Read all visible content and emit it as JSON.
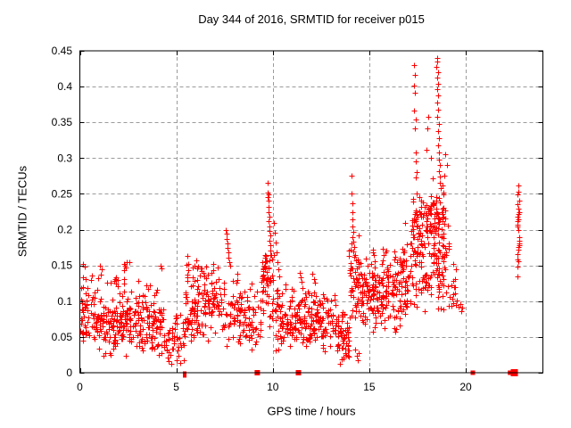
{
  "chart_data": {
    "type": "scatter",
    "title": "Day 344 of 2016, SRMTID for receiver p015",
    "xlabel": "GPS time / hours",
    "ylabel": "SRMTID / TECUs",
    "xlim": [
      0,
      24
    ],
    "ylim": [
      0,
      0.45
    ],
    "grid": true,
    "legend": "none",
    "marker": "plus",
    "point_color": "#ff0000",
    "grid_color": "#9b9b9b",
    "axis_color": "#000000",
    "x_ticks": {
      "values": [
        0,
        5,
        10,
        15,
        20
      ],
      "labels": [
        "0",
        "5",
        "10",
        "15",
        "20"
      ]
    },
    "y_ticks": {
      "values": [
        0,
        0.05,
        0.1,
        0.15,
        0.2,
        0.25,
        0.3,
        0.35,
        0.4,
        0.45
      ],
      "labels": [
        "0",
        "0.05",
        "0.1",
        "0.15",
        "0.2",
        "0.25",
        "0.3",
        "0.35",
        "0.4",
        "0.45"
      ]
    },
    "seed": 1337,
    "noise_bands": [
      {
        "x0": 0.0,
        "x1": 0.55,
        "n": 40,
        "mean": 0.082,
        "sd": 0.027,
        "min": 0.035,
        "max": 0.14
      },
      {
        "x0": 0.55,
        "x1": 4.35,
        "n": 270,
        "mean": 0.068,
        "sd": 0.023,
        "min": 0.022,
        "max": 0.125
      },
      {
        "x0": 0.55,
        "x1": 4.35,
        "n": 22,
        "mean": 0.115,
        "sd": 0.012,
        "min": 0.1,
        "max": 0.14
      },
      {
        "x0": 4.35,
        "x1": 5.45,
        "n": 48,
        "mean": 0.045,
        "sd": 0.018,
        "min": 0.008,
        "max": 0.085
      },
      {
        "x0": 5.45,
        "x1": 7.6,
        "n": 150,
        "mean": 0.095,
        "sd": 0.026,
        "min": 0.042,
        "max": 0.158
      },
      {
        "x0": 7.6,
        "x1": 9.4,
        "n": 100,
        "mean": 0.078,
        "sd": 0.022,
        "min": 0.032,
        "max": 0.132
      },
      {
        "x0": 9.35,
        "x1": 10.1,
        "n": 60,
        "mean": 0.118,
        "sd": 0.028,
        "min": 0.06,
        "max": 0.168
      },
      {
        "x0": 10.1,
        "x1": 13.35,
        "n": 240,
        "mean": 0.072,
        "sd": 0.021,
        "min": 0.028,
        "max": 0.128
      },
      {
        "x0": 13.35,
        "x1": 13.95,
        "n": 55,
        "mean": 0.05,
        "sd": 0.016,
        "min": 0.015,
        "max": 0.088
      },
      {
        "x0": 13.95,
        "x1": 14.5,
        "n": 50,
        "mean": 0.125,
        "sd": 0.032,
        "min": 0.07,
        "max": 0.2
      },
      {
        "x0": 14.5,
        "x1": 16.55,
        "n": 165,
        "mean": 0.108,
        "sd": 0.026,
        "min": 0.055,
        "max": 0.175
      },
      {
        "x0": 16.55,
        "x1": 17.15,
        "n": 55,
        "mean": 0.13,
        "sd": 0.033,
        "min": 0.06,
        "max": 0.21
      },
      {
        "x0": 17.15,
        "x1": 19.15,
        "n": 190,
        "mean": 0.165,
        "sd": 0.045,
        "min": 0.082,
        "max": 0.262
      },
      {
        "x0": 17.2,
        "x1": 19.0,
        "n": 55,
        "mean": 0.225,
        "sd": 0.014,
        "min": 0.198,
        "max": 0.252
      },
      {
        "x0": 19.15,
        "x1": 19.55,
        "n": 12,
        "mean": 0.115,
        "sd": 0.022,
        "min": 0.08,
        "max": 0.155
      }
    ],
    "feature_points": [
      [
        0.18,
        0.152
      ],
      [
        0.25,
        0.148
      ],
      [
        0.32,
        0.131
      ],
      [
        0.08,
        0.118
      ],
      [
        1.02,
        0.15
      ],
      [
        1.08,
        0.137
      ],
      [
        1.15,
        0.144
      ],
      [
        2.28,
        0.152
      ],
      [
        2.32,
        0.15
      ],
      [
        2.36,
        0.147
      ],
      [
        2.3,
        0.143
      ],
      [
        2.42,
        0.154
      ],
      [
        2.55,
        0.155
      ],
      [
        3.05,
        0.128
      ],
      [
        3.45,
        0.122
      ],
      [
        4.18,
        0.15
      ],
      [
        4.24,
        0.146
      ],
      [
        4.6,
        0.016
      ],
      [
        4.75,
        0.012
      ],
      [
        5.0,
        0.018
      ],
      [
        5.2,
        0.014
      ],
      [
        5.55,
        0.163
      ],
      [
        5.62,
        0.152
      ],
      [
        5.95,
        0.15
      ],
      [
        6.02,
        0.157
      ],
      [
        6.08,
        0.146
      ],
      [
        6.55,
        0.148
      ],
      [
        6.92,
        0.152
      ],
      [
        7.58,
        0.2
      ],
      [
        7.62,
        0.194
      ],
      [
        7.6,
        0.187
      ],
      [
        7.66,
        0.181
      ],
      [
        7.64,
        0.174
      ],
      [
        7.7,
        0.168
      ],
      [
        7.68,
        0.161
      ],
      [
        7.74,
        0.155
      ],
      [
        7.78,
        0.15
      ],
      [
        8.15,
        0.138
      ],
      [
        8.9,
        0.125
      ],
      [
        9.72,
        0.266
      ],
      [
        9.75,
        0.252
      ],
      [
        9.77,
        0.249
      ],
      [
        9.74,
        0.246
      ],
      [
        9.78,
        0.24
      ],
      [
        9.8,
        0.232
      ],
      [
        9.76,
        0.225
      ],
      [
        9.82,
        0.218
      ],
      [
        9.79,
        0.212
      ],
      [
        9.83,
        0.205
      ],
      [
        9.81,
        0.198
      ],
      [
        9.85,
        0.192
      ],
      [
        9.84,
        0.185
      ],
      [
        9.87,
        0.178
      ],
      [
        9.86,
        0.171
      ],
      [
        9.9,
        0.164
      ],
      [
        10.05,
        0.21
      ],
      [
        10.1,
        0.196
      ],
      [
        10.13,
        0.182
      ],
      [
        10.18,
        0.168
      ],
      [
        10.23,
        0.155
      ],
      [
        10.28,
        0.144
      ],
      [
        10.33,
        0.135
      ],
      [
        11.38,
        0.14
      ],
      [
        11.44,
        0.133
      ],
      [
        11.5,
        0.127
      ],
      [
        12.05,
        0.138
      ],
      [
        12.12,
        0.131
      ],
      [
        12.2,
        0.126
      ],
      [
        13.5,
        0.013
      ],
      [
        13.58,
        0.019
      ],
      [
        14.08,
        0.276
      ],
      [
        14.1,
        0.25
      ],
      [
        14.12,
        0.237
      ],
      [
        14.11,
        0.225
      ],
      [
        14.14,
        0.214
      ],
      [
        14.13,
        0.205
      ],
      [
        14.16,
        0.197
      ],
      [
        14.15,
        0.19
      ],
      [
        14.18,
        0.183
      ],
      [
        14.2,
        0.176
      ],
      [
        14.17,
        0.169
      ],
      [
        14.22,
        0.162
      ],
      [
        14.28,
        0.032
      ],
      [
        14.34,
        0.024
      ],
      [
        14.41,
        0.018
      ],
      [
        14.47,
        0.027
      ],
      [
        15.18,
        0.172
      ],
      [
        15.22,
        0.164
      ],
      [
        15.27,
        0.156
      ],
      [
        15.68,
        0.173
      ],
      [
        15.74,
        0.165
      ],
      [
        15.71,
        0.157
      ],
      [
        16.3,
        0.17
      ],
      [
        16.36,
        0.162
      ],
      [
        16.43,
        0.155
      ],
      [
        16.8,
        0.168
      ],
      [
        17.32,
        0.43
      ],
      [
        17.35,
        0.416
      ],
      [
        17.3,
        0.402
      ],
      [
        17.38,
        0.391
      ],
      [
        17.34,
        0.366
      ],
      [
        17.4,
        0.354
      ],
      [
        17.36,
        0.341
      ],
      [
        17.42,
        0.308
      ],
      [
        17.39,
        0.295
      ],
      [
        17.44,
        0.281
      ],
      [
        17.41,
        0.273
      ],
      [
        17.95,
        0.312
      ],
      [
        18.0,
        0.341
      ],
      [
        18.05,
        0.358
      ],
      [
        18.5,
        0.44
      ],
      [
        18.53,
        0.435
      ],
      [
        18.48,
        0.428
      ],
      [
        18.55,
        0.42
      ],
      [
        18.52,
        0.412
      ],
      [
        18.57,
        0.404
      ],
      [
        18.5,
        0.396
      ],
      [
        18.56,
        0.388
      ],
      [
        18.54,
        0.378
      ],
      [
        18.58,
        0.368
      ],
      [
        18.52,
        0.358
      ],
      [
        18.6,
        0.348
      ],
      [
        18.55,
        0.338
      ],
      [
        18.62,
        0.328
      ],
      [
        18.58,
        0.318
      ],
      [
        18.63,
        0.308
      ],
      [
        18.6,
        0.298
      ],
      [
        18.65,
        0.29
      ],
      [
        18.62,
        0.282
      ],
      [
        18.67,
        0.274
      ],
      [
        18.64,
        0.266
      ],
      [
        18.7,
        0.258
      ],
      [
        18.2,
        0.3
      ],
      [
        18.3,
        0.272
      ],
      [
        18.8,
        0.262
      ],
      [
        18.85,
        0.252
      ],
      [
        18.95,
        0.305
      ],
      [
        19.05,
        0.291
      ],
      [
        18.9,
        0.276
      ],
      [
        19.35,
        0.152
      ],
      [
        19.45,
        0.12
      ],
      [
        19.55,
        0.101
      ],
      [
        19.62,
        0.092
      ],
      [
        19.7,
        0.096
      ],
      [
        19.76,
        0.086
      ],
      [
        19.82,
        0.091
      ],
      [
        22.72,
        0.262
      ],
      [
        22.75,
        0.253
      ],
      [
        22.68,
        0.249
      ],
      [
        22.76,
        0.241
      ],
      [
        22.7,
        0.236
      ],
      [
        22.74,
        0.229
      ],
      [
        22.76,
        0.225
      ],
      [
        22.73,
        0.222
      ],
      [
        22.7,
        0.218
      ],
      [
        22.72,
        0.215
      ],
      [
        22.68,
        0.212
      ],
      [
        22.7,
        0.207
      ],
      [
        22.66,
        0.204
      ],
      [
        22.75,
        0.2
      ],
      [
        22.78,
        0.189
      ],
      [
        22.77,
        0.185
      ],
      [
        22.79,
        0.181
      ],
      [
        22.76,
        0.178
      ],
      [
        22.74,
        0.176
      ],
      [
        22.72,
        0.172
      ],
      [
        22.68,
        0.166
      ],
      [
        22.7,
        0.158
      ],
      [
        22.73,
        0.156
      ],
      [
        22.68,
        0.148
      ],
      [
        22.7,
        0.135
      ]
    ],
    "zero_line_markers": [
      {
        "x": 9.2,
        "w": 6
      },
      {
        "x": 11.33,
        "w": 6
      },
      {
        "x": 20.37,
        "w": 5
      },
      {
        "x": 22.3,
        "w": 5
      },
      {
        "x": 22.52,
        "w": 8
      }
    ],
    "near_zero_ticks": [
      5.36,
      5.43
    ]
  }
}
